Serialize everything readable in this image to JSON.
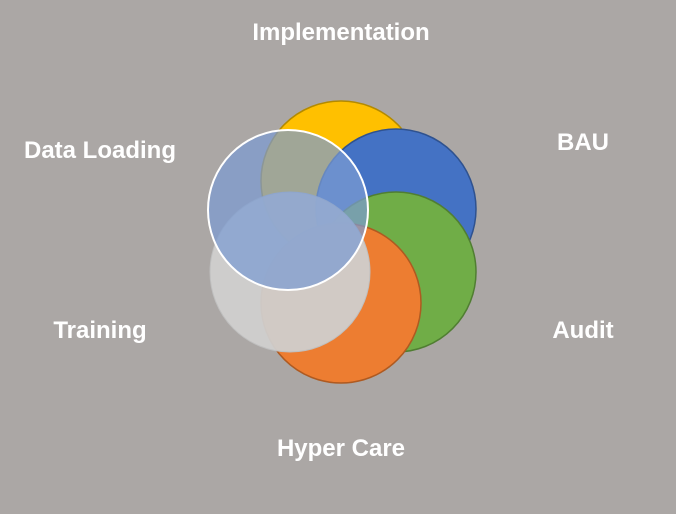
{
  "diagram": {
    "phases": [
      {
        "label": "Implementation",
        "color": "#ffc000"
      },
      {
        "label": "BAU",
        "color": "#4472c4"
      },
      {
        "label": "Audit",
        "color": "#70ad47"
      },
      {
        "label": "Hyper Care",
        "color": "#ed7d31"
      },
      {
        "label": "Training",
        "color": "#d0cfce"
      },
      {
        "label": "Data Loading",
        "color": "#7b9bd1"
      }
    ]
  }
}
